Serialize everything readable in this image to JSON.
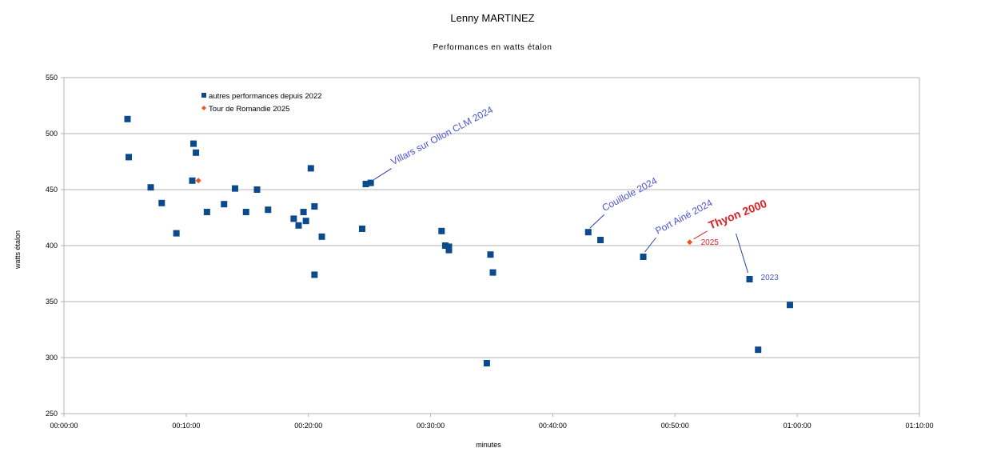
{
  "chart_data": {
    "type": "scatter",
    "title": "Lenny MARTINEZ",
    "subtitle": "Performances en watts étalon",
    "xlabel": "minutes",
    "ylabel": "watts étalon",
    "xlim": [
      0,
      70
    ],
    "ylim": [
      250,
      550
    ],
    "x_ticks": [
      0,
      10,
      20,
      30,
      40,
      50,
      60,
      70
    ],
    "x_tick_labels": [
      "00:00:00",
      "00:10:00",
      "00:20:00",
      "00:30:00",
      "00:40:00",
      "00:50:00",
      "01:00:00",
      "01:10:00"
    ],
    "y_ticks": [
      250,
      300,
      350,
      400,
      450,
      500,
      550
    ],
    "grid": "horizontal",
    "legend_position": "top-left",
    "series": [
      {
        "name": "autres performances depuis 2022",
        "marker": "square",
        "color": "#0b4a8b",
        "points": [
          {
            "x": 5.2,
            "y": 513
          },
          {
            "x": 5.3,
            "y": 479
          },
          {
            "x": 7.1,
            "y": 452
          },
          {
            "x": 8.0,
            "y": 438
          },
          {
            "x": 9.2,
            "y": 411
          },
          {
            "x": 10.5,
            "y": 458
          },
          {
            "x": 10.6,
            "y": 491
          },
          {
            "x": 10.8,
            "y": 483
          },
          {
            "x": 11.7,
            "y": 430
          },
          {
            "x": 13.1,
            "y": 437
          },
          {
            "x": 14.0,
            "y": 451
          },
          {
            "x": 14.9,
            "y": 430
          },
          {
            "x": 15.8,
            "y": 450
          },
          {
            "x": 16.7,
            "y": 432
          },
          {
            "x": 18.8,
            "y": 424
          },
          {
            "x": 19.2,
            "y": 418
          },
          {
            "x": 19.6,
            "y": 430
          },
          {
            "x": 19.8,
            "y": 422
          },
          {
            "x": 20.2,
            "y": 469
          },
          {
            "x": 20.5,
            "y": 435
          },
          {
            "x": 20.5,
            "y": 374
          },
          {
            "x": 21.1,
            "y": 408
          },
          {
            "x": 24.4,
            "y": 415
          },
          {
            "x": 24.7,
            "y": 455
          },
          {
            "x": 25.1,
            "y": 456
          },
          {
            "x": 30.9,
            "y": 413
          },
          {
            "x": 31.2,
            "y": 400
          },
          {
            "x": 31.5,
            "y": 399
          },
          {
            "x": 31.5,
            "y": 396
          },
          {
            "x": 34.6,
            "y": 295
          },
          {
            "x": 34.9,
            "y": 392
          },
          {
            "x": 35.1,
            "y": 376
          },
          {
            "x": 42.9,
            "y": 412
          },
          {
            "x": 43.9,
            "y": 405
          },
          {
            "x": 47.4,
            "y": 390
          },
          {
            "x": 56.1,
            "y": 370
          },
          {
            "x": 56.8,
            "y": 307
          },
          {
            "x": 59.4,
            "y": 347
          }
        ]
      },
      {
        "name": "Tour de Romandie 2025",
        "marker": "diamond",
        "color": "#e8581d",
        "points": [
          {
            "x": 11.0,
            "y": 458
          },
          {
            "x": 51.2,
            "y": 403
          }
        ]
      }
    ],
    "annotations": [
      {
        "text": "Villars sur Ollon CLM 2024",
        "style": "blue",
        "x": 25.1,
        "y": 456
      },
      {
        "text": "Couillole 2024",
        "style": "blue",
        "x": 42.9,
        "y": 412
      },
      {
        "text": "Port Ainé 2024",
        "style": "blue",
        "x": 47.4,
        "y": 390
      },
      {
        "text": "Thyon 2000",
        "style": "red-bold",
        "x": 51.2,
        "y": 403
      },
      {
        "text": "2025",
        "style": "red-small",
        "x": 51.2,
        "y": 403
      },
      {
        "text": "2023",
        "style": "blue-small",
        "x": 56.1,
        "y": 370
      }
    ],
    "colors": {
      "blue_marker": "#0b4a8b",
      "orange_marker": "#e8581d",
      "annotation_blue": "#4a52d6",
      "annotation_red": "#e31e24",
      "grid": "#b3b3b3"
    }
  }
}
